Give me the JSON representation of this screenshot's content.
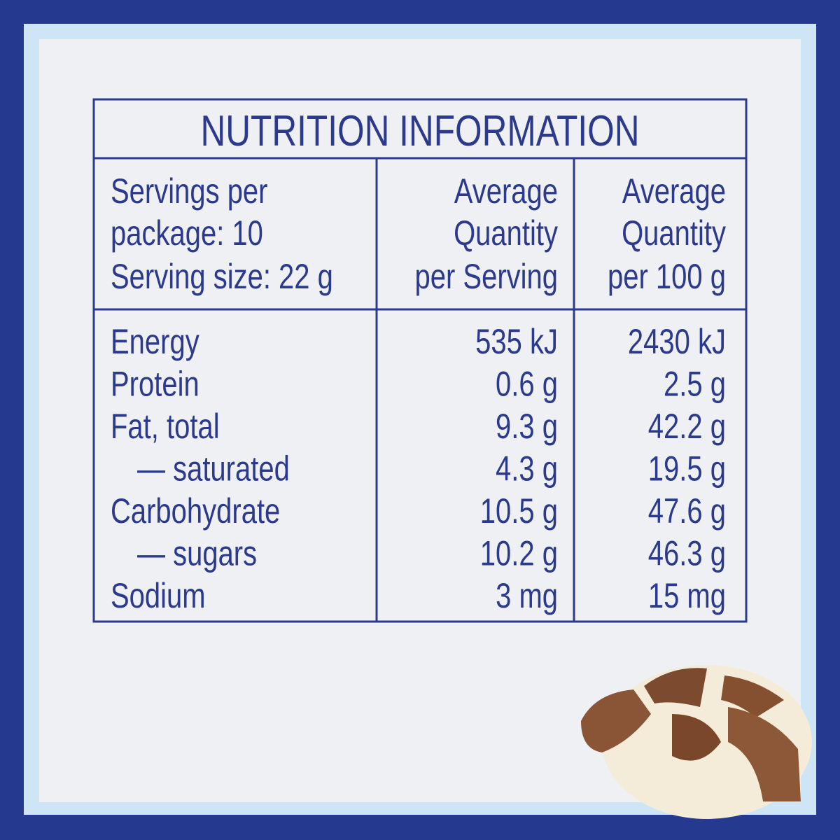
{
  "title": "NUTRITION INFORMATION",
  "header": {
    "serving_info": [
      "Servings per",
      "package: 10",
      "Serving size: 22 g"
    ],
    "per_serving": [
      "Average",
      "Quantity",
      "per Serving"
    ],
    "per_100g": [
      "Average",
      "Quantity",
      "per 100 g"
    ]
  },
  "table": {
    "rows": [
      [
        "Energy",
        "535 kJ",
        "2430 kJ"
      ],
      [
        "Protein",
        "0.6 g",
        "2.5 g"
      ],
      [
        "Fat, total",
        "9.3 g",
        "42.2 g"
      ],
      [
        "— saturated",
        "4.3 g",
        "19.5 g"
      ],
      [
        "Carbohydrate",
        "10.5 g",
        "47.6 g"
      ],
      [
        "— sugars",
        "10.2 g",
        "46.3 g"
      ],
      [
        "Sodium",
        "3 mg",
        "15 mg"
      ]
    ]
  }
}
